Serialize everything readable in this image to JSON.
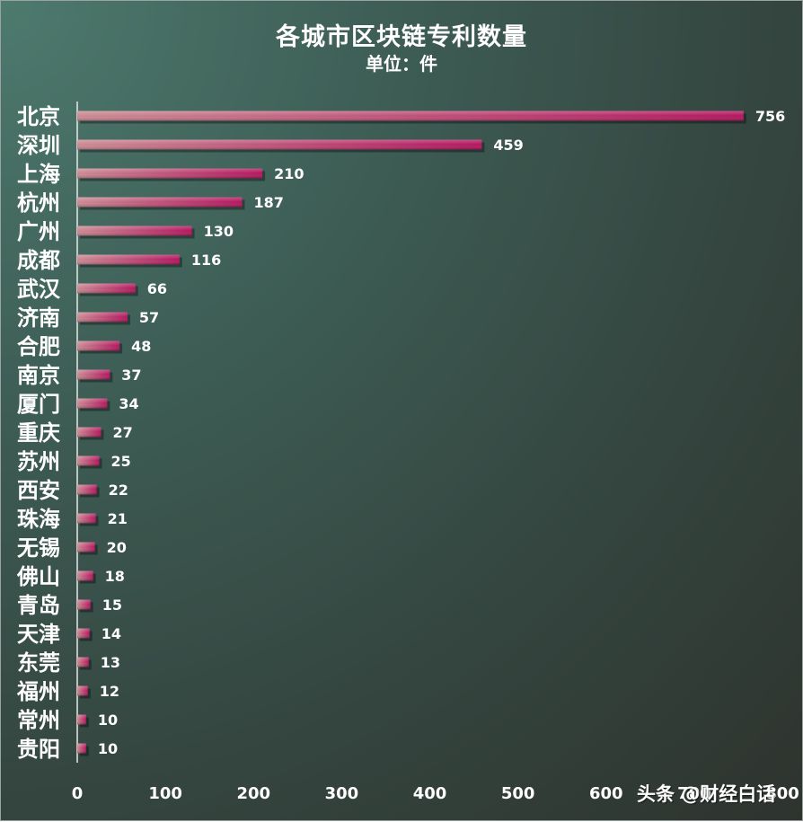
{
  "chart_data": {
    "type": "bar",
    "orientation": "horizontal",
    "title": "各城市区块链专利数量",
    "subtitle": "单位：件",
    "categories": [
      "北京",
      "深圳",
      "上海",
      "杭州",
      "广州",
      "成都",
      "武汉",
      "济南",
      "合肥",
      "南京",
      "厦门",
      "重庆",
      "苏州",
      "西安",
      "珠海",
      "无锡",
      "佛山",
      "青岛",
      "天津",
      "东莞",
      "福州",
      "常州",
      "贵阳"
    ],
    "values": [
      756,
      459,
      210,
      187,
      130,
      116,
      66,
      57,
      48,
      37,
      34,
      27,
      25,
      22,
      21,
      20,
      18,
      15,
      14,
      13,
      12,
      10,
      10
    ],
    "xlim": [
      0,
      800
    ],
    "xticks": [
      "0",
      "100",
      "200",
      "300",
      "400",
      "500",
      "600",
      "700",
      "800"
    ],
    "grid": false,
    "legend": "none",
    "bar_color_start": "#c98a92",
    "bar_color_end": "#b3165e",
    "label_color": "#ffffff"
  },
  "watermark": "头条 @财经白话"
}
